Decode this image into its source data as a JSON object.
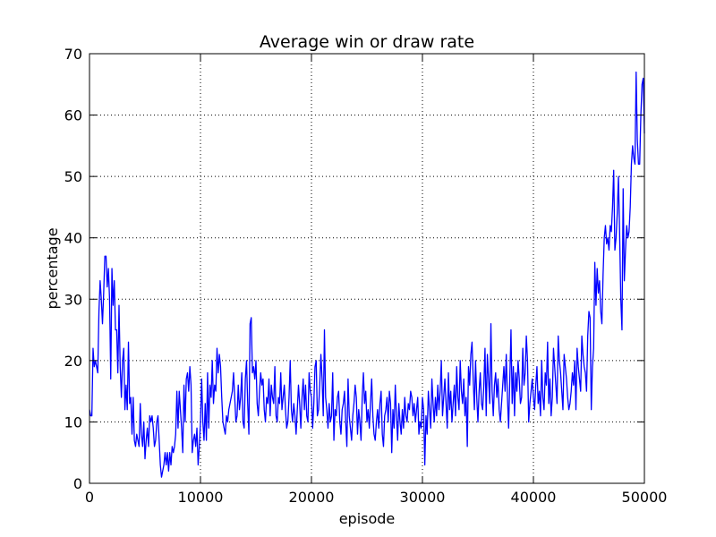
{
  "chart_data": {
    "type": "line",
    "title": "Average win or draw rate",
    "xlabel": "episode",
    "ylabel": "percentage",
    "xlim": [
      0,
      50000
    ],
    "ylim": [
      0,
      70
    ],
    "xticks": [
      "0",
      "10000",
      "20000",
      "30000",
      "40000",
      "50000"
    ],
    "yticks": [
      "0",
      "10",
      "20",
      "30",
      "40",
      "50",
      "60",
      "70"
    ],
    "grid": true,
    "grid_style": "dotted",
    "line_color": "#0000ff",
    "series": [
      {
        "values": [
          12,
          11,
          11,
          22,
          19,
          20,
          19,
          18,
          28,
          33,
          30,
          26,
          31,
          37,
          37,
          32,
          35,
          30,
          17,
          35,
          29,
          33,
          25,
          25,
          18,
          29,
          19,
          14,
          20,
          22,
          12,
          16,
          12,
          23,
          13,
          14,
          8,
          14,
          7,
          6,
          8,
          7,
          6,
          13,
          8,
          6,
          10,
          4,
          7,
          9,
          6,
          11,
          10,
          11,
          9,
          6,
          7,
          10,
          11,
          7,
          3,
          1,
          2,
          3,
          5,
          3,
          5,
          2,
          5,
          3,
          6,
          5,
          6,
          8,
          15,
          9,
          15,
          12,
          9,
          5,
          16,
          10,
          17,
          18,
          15,
          19,
          16,
          5,
          7,
          8,
          6,
          9,
          3,
          6,
          10,
          17,
          10,
          7,
          13,
          7,
          18,
          9,
          16,
          14,
          20,
          13,
          16,
          15,
          22,
          18,
          21,
          19,
          14,
          10,
          9,
          8,
          11,
          10,
          12,
          13,
          14,
          15,
          18,
          14,
          10,
          11,
          16,
          12,
          14,
          18,
          10,
          9,
          17,
          20,
          13,
          8,
          26,
          27,
          18,
          19,
          17,
          20,
          13,
          11,
          15,
          18,
          16,
          17,
          12,
          10,
          14,
          13,
          17,
          11,
          16,
          14,
          13,
          19,
          11,
          10,
          14,
          13,
          18,
          12,
          14,
          16,
          12,
          9,
          10,
          14,
          20,
          12,
          10,
          13,
          11,
          8,
          12,
          16,
          13,
          9,
          14,
          17,
          12,
          16,
          11,
          10,
          18,
          15,
          14,
          9,
          13,
          19,
          20,
          11,
          12,
          16,
          21,
          17,
          11,
          25,
          14,
          12,
          9,
          13,
          10,
          11,
          18,
          7,
          12,
          11,
          14,
          15,
          10,
          8,
          12,
          13,
          15,
          10,
          6,
          17,
          11,
          9,
          7,
          11,
          13,
          16,
          14,
          8,
          12,
          10,
          7,
          14,
          18,
          13,
          15,
          10,
          12,
          9,
          13,
          17,
          11,
          8,
          7,
          10,
          12,
          9,
          13,
          15,
          8,
          6,
          11,
          12,
          14,
          10,
          15,
          13,
          5,
          12,
          9,
          16,
          11,
          7,
          13,
          10,
          8,
          12,
          9,
          14,
          11,
          10,
          13,
          12,
          15,
          14,
          11,
          13,
          10,
          12,
          14,
          8,
          10,
          9,
          14,
          12,
          3,
          11,
          8,
          15,
          12,
          9,
          17,
          13,
          10,
          14,
          11,
          16,
          12,
          15,
          20,
          11,
          14,
          17,
          13,
          9,
          18,
          12,
          15,
          10,
          13,
          16,
          11,
          19,
          14,
          12,
          20,
          15,
          13,
          17,
          11,
          14,
          6,
          19,
          16,
          21,
          23,
          17,
          12,
          20,
          14,
          10,
          15,
          18,
          13,
          12,
          16,
          22,
          11,
          21,
          17,
          13,
          26,
          15,
          11,
          16,
          18,
          14,
          17,
          12,
          10,
          13,
          16,
          19,
          15,
          21,
          14,
          9,
          17,
          25,
          13,
          19,
          11,
          18,
          15,
          20,
          17,
          13,
          14,
          22,
          16,
          18,
          24,
          20,
          10,
          13,
          15,
          17,
          14,
          12,
          16,
          19,
          13,
          15,
          11,
          20,
          14,
          12,
          18,
          16,
          23,
          13,
          17,
          11,
          14,
          22,
          19,
          16,
          13,
          24,
          20,
          18,
          15,
          12,
          21,
          19,
          17,
          14,
          12,
          13,
          15,
          18,
          16,
          20,
          12,
          22,
          19,
          17,
          15,
          24,
          21,
          19,
          18,
          15,
          24,
          28,
          27,
          12,
          19,
          22,
          36,
          29,
          35,
          31,
          33,
          28,
          26,
          34,
          40,
          42,
          39,
          40,
          38,
          42,
          41,
          45,
          51,
          38,
          40,
          44,
          50,
          41,
          30,
          25,
          48,
          33,
          38,
          42,
          40,
          41,
          45,
          52,
          55,
          53,
          52,
          67,
          56,
          52,
          52,
          60,
          65,
          66,
          57
        ]
      }
    ]
  }
}
